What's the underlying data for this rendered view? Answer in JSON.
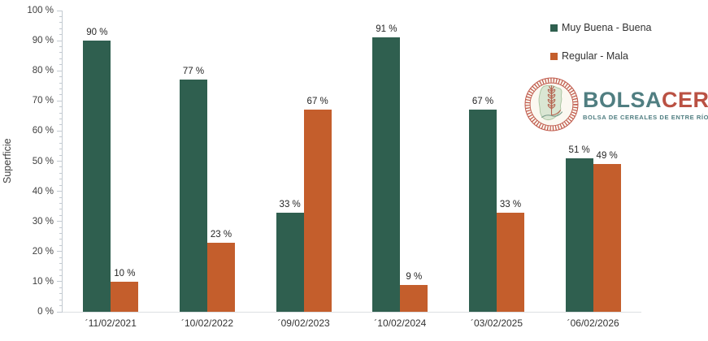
{
  "chart_data": {
    "type": "bar",
    "title": "",
    "xlabel": "",
    "ylabel": "Superficie",
    "ylim": [
      0,
      100
    ],
    "grid": false,
    "legend_position": "top-right",
    "ytick_major_step": 10,
    "ytick_minor_step": 2,
    "yticks": [
      "0 %",
      "10 %",
      "20 %",
      "30 %",
      "40 %",
      "50 %",
      "60 %",
      "70 %",
      "80 %",
      "90 %",
      "100 %"
    ],
    "categories": [
      "´11/02/2021",
      "´10/02/2022",
      "´09/02/2023",
      "´10/02/2024",
      "´03/02/2025",
      "´06/02/2026"
    ],
    "series": [
      {
        "name": "Muy Buena - Buena",
        "color": "#2f5f4f",
        "values": [
          90,
          77,
          33,
          91,
          67,
          51
        ],
        "labels": [
          "90 %",
          "77 %",
          "33 %",
          "91 %",
          "67 %",
          "51 %"
        ]
      },
      {
        "name": "Regular - Mala",
        "color": "#c45e2c",
        "values": [
          10,
          23,
          67,
          9,
          33,
          49
        ],
        "labels": [
          "10 %",
          "23 %",
          "67 %",
          "9 %",
          "33 %",
          "49 %"
        ]
      }
    ]
  },
  "logo": {
    "brand_primary": "BOLSA",
    "brand_secondary": "CER",
    "subtitle": "BOLSA DE CEREALES DE ENTRE RÍOS",
    "primary_color": "#507e81",
    "secondary_color": "#ba5143"
  }
}
